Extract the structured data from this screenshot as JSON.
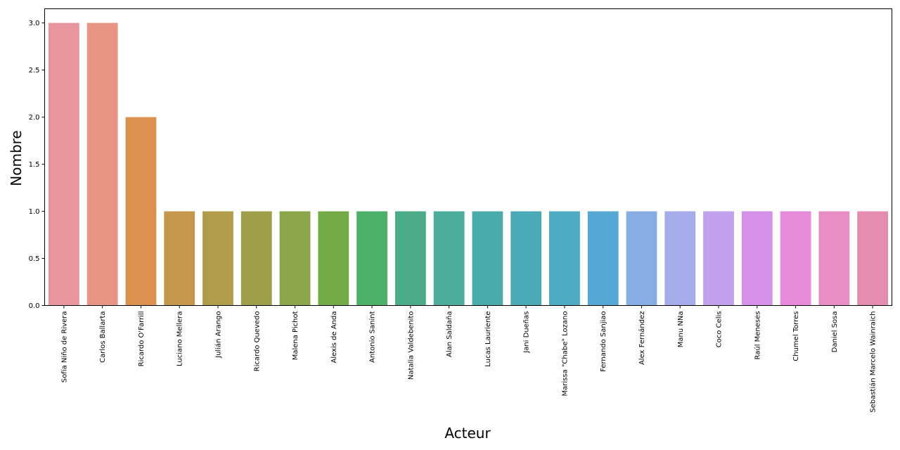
{
  "chart_data": {
    "type": "bar",
    "title": "",
    "xlabel": "Acteur",
    "ylabel": "Nombre",
    "ylim": [
      0,
      3.15
    ],
    "yticks": [
      "0.0",
      "0.5",
      "1.0",
      "1.5",
      "2.0",
      "2.5",
      "3.0"
    ],
    "grid": false,
    "categories": [
      "Sofía Niño de Rivera",
      "Carlos Ballarta",
      "Ricardo O'Farrill",
      "Luciano Mellera",
      "Julián Arango",
      "Ricardo Quevedo",
      "Malena Pichot",
      "Alexis de Anda",
      "Antonio Sanint",
      "Natalia Valdebenito",
      "Alan Saldaña",
      "Lucas Lauriente",
      "Jani Dueñas",
      "Marissa \"Chabe\" Lozano",
      "Fernando Sanjiao",
      "Alex Fernández",
      "Manu NNa",
      "Coco Celis",
      "Raúl Meneses",
      "Chumel Torres",
      "Daniel Sosa",
      "Sebastián Marcelo Wainraich"
    ],
    "values": [
      3,
      3,
      2,
      1,
      1,
      1,
      1,
      1,
      1,
      1,
      1,
      1,
      1,
      1,
      1,
      1,
      1,
      1,
      1,
      1,
      1,
      1
    ],
    "colors": [
      "#e8959f",
      "#e89585",
      "#dc914f",
      "#c4974d",
      "#b09c4b",
      "#9e9f4a",
      "#8aa54a",
      "#72ab47",
      "#4cb166",
      "#4bad88",
      "#4cad9d",
      "#4babaa",
      "#4baab5",
      "#4dabc3",
      "#55a8d4",
      "#86ade4",
      "#a6acea",
      "#c2a0eb",
      "#d591e8",
      "#e68bdc",
      "#e68dc6",
      "#e48db0"
    ]
  }
}
